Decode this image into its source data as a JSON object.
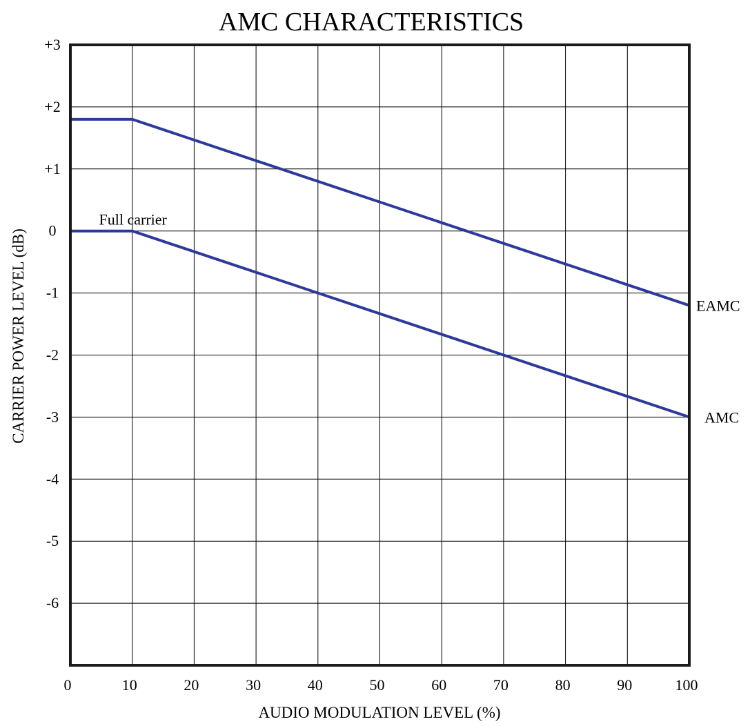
{
  "chart_data": {
    "type": "line",
    "title": "AMC CHARACTERISTICS",
    "xlabel": "AUDIO MODULATION LEVEL (%)",
    "ylabel": "CARRIER POWER LEVEL (dB)",
    "xlim": [
      0,
      100
    ],
    "ylim": [
      -7,
      3
    ],
    "xticks": [
      0,
      10,
      20,
      30,
      40,
      50,
      60,
      70,
      80,
      90,
      100
    ],
    "xtick_labels": [
      "0",
      "10",
      "20",
      "30",
      "40",
      "50",
      "60",
      "70",
      "80",
      "90",
      "100"
    ],
    "yticks": [
      3,
      2,
      1,
      0,
      -1,
      -2,
      -3,
      -4,
      -5,
      -6
    ],
    "ytick_labels": [
      "+3",
      "+2",
      "+1",
      "0",
      "-1",
      "-2",
      "-3",
      "-4",
      "-5",
      "-6"
    ],
    "grid": true,
    "legend": "none",
    "series": [
      {
        "name": "EAMC",
        "color": "#2e3a9a",
        "x": [
          0,
          10,
          100
        ],
        "y": [
          1.8,
          1.8,
          -1.2
        ]
      },
      {
        "name": "AMC",
        "color": "#2e3a9a",
        "x": [
          0,
          10,
          100
        ],
        "y": [
          0,
          0,
          -3
        ]
      }
    ],
    "annotations": [
      {
        "text": "Full carrier",
        "x": 10,
        "y": 0
      }
    ]
  }
}
